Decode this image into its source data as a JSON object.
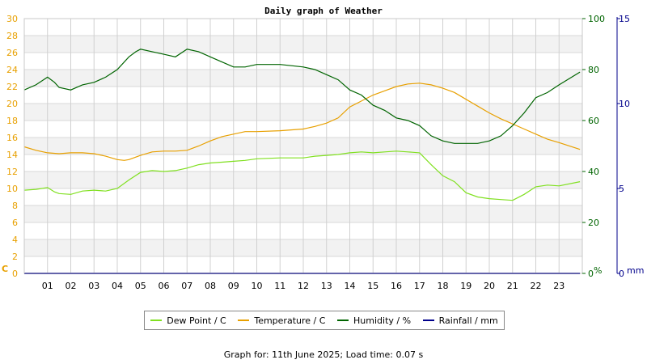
{
  "chart_data": {
    "type": "line",
    "title": "Daily graph of Weather",
    "x_ticks": [
      "01",
      "02",
      "03",
      "04",
      "05",
      "06",
      "07",
      "08",
      "09",
      "10",
      "11",
      "12",
      "13",
      "14",
      "15",
      "16",
      "17",
      "18",
      "19",
      "20",
      "21",
      "22",
      "23"
    ],
    "axes": {
      "left": {
        "unit": "C",
        "min": 0,
        "max": 30,
        "ticks": [
          0,
          2,
          4,
          6,
          8,
          10,
          12,
          14,
          16,
          18,
          20,
          22,
          24,
          26,
          28,
          30
        ],
        "color": "#e8a000"
      },
      "right1": {
        "unit": "%",
        "min": 0,
        "max": 100,
        "ticks": [
          0,
          20,
          40,
          60,
          80,
          100
        ],
        "color": "#006400"
      },
      "right2": {
        "unit": "mm",
        "min": 0,
        "max": 15,
        "ticks": [
          0,
          5,
          10,
          15
        ],
        "color": "#00008b"
      }
    },
    "series": [
      {
        "name": "Dew Point / C",
        "axis": "left",
        "color": "#80e020",
        "x": [
          0,
          0.5,
          1,
          1.3,
          1.5,
          2,
          2.5,
          3,
          3.5,
          4,
          4.5,
          5,
          5.5,
          6,
          6.5,
          7,
          7.5,
          8,
          8.5,
          9,
          9.5,
          10,
          11,
          12,
          12.5,
          13,
          13.5,
          14,
          14.5,
          15,
          15.5,
          16,
          16.5,
          17,
          17.5,
          18,
          18.5,
          19,
          19.5,
          20,
          20.5,
          21,
          21.5,
          22,
          22.5,
          23,
          23.9
        ],
        "values": [
          9.8,
          9.9,
          10.1,
          9.6,
          9.4,
          9.3,
          9.7,
          9.8,
          9.7,
          10,
          11,
          11.9,
          12.1,
          12,
          12.1,
          12.4,
          12.8,
          13,
          13.1,
          13.2,
          13.3,
          13.5,
          13.6,
          13.6,
          13.8,
          13.9,
          14,
          14.2,
          14.3,
          14.2,
          14.3,
          14.4,
          14.3,
          14.2,
          12.8,
          11.5,
          10.8,
          9.5,
          9.0,
          8.8,
          8.7,
          8.6,
          9.3,
          10.2,
          10.4,
          10.3,
          10.8
        ]
      },
      {
        "name": "Temperature / C",
        "axis": "left",
        "color": "#e8a000",
        "x": [
          0,
          0.5,
          1,
          1.5,
          2,
          2.5,
          3,
          3.5,
          4,
          4.3,
          4.5,
          5,
          5.5,
          6,
          6.5,
          7,
          7.5,
          8,
          8.5,
          9,
          9.5,
          10,
          11,
          12,
          12.5,
          13,
          13.5,
          14,
          14.5,
          15,
          15.5,
          16,
          16.5,
          17,
          17.5,
          18,
          18.5,
          19,
          19.5,
          20,
          20.5,
          21,
          21.5,
          22,
          22.5,
          23,
          23.9
        ],
        "values": [
          14.9,
          14.5,
          14.2,
          14.1,
          14.2,
          14.2,
          14.1,
          13.8,
          13.4,
          13.3,
          13.4,
          13.9,
          14.3,
          14.4,
          14.4,
          14.5,
          15.0,
          15.6,
          16.1,
          16.4,
          16.7,
          16.7,
          16.8,
          17.0,
          17.3,
          17.7,
          18.3,
          19.6,
          20.3,
          21.0,
          21.5,
          22.0,
          22.3,
          22.4,
          22.2,
          21.8,
          21.3,
          20.5,
          19.7,
          18.9,
          18.2,
          17.6,
          17.0,
          16.4,
          15.8,
          15.4,
          14.6
        ]
      },
      {
        "name": "Humidity / %",
        "axis": "right1",
        "color": "#006400",
        "x": [
          0,
          0.5,
          1,
          1.3,
          1.5,
          2,
          2.5,
          3,
          3.5,
          4,
          4.5,
          4.8,
          5,
          5.5,
          6,
          6.5,
          7,
          7.5,
          8,
          8.5,
          9,
          9.5,
          10,
          11,
          12,
          12.5,
          13,
          13.5,
          14,
          14.5,
          15,
          15.5,
          16,
          16.5,
          17,
          17.5,
          18,
          18.5,
          19,
          19.5,
          20,
          20.5,
          21,
          21.5,
          22,
          22.5,
          23,
          23.9
        ],
        "values": [
          72,
          74,
          77,
          75,
          73,
          72,
          74,
          75,
          77,
          80,
          85,
          87,
          88,
          87,
          86,
          85,
          88,
          87,
          85,
          83,
          81,
          81,
          82,
          82,
          81,
          80,
          78,
          76,
          72,
          70,
          66,
          64,
          61,
          60,
          58,
          54,
          52,
          51,
          51,
          51,
          52,
          54,
          58,
          63,
          69,
          71,
          74,
          79
        ]
      },
      {
        "name": "Rainfall / mm",
        "axis": "right2",
        "color": "#00008b",
        "x": [
          0,
          23.9
        ],
        "values": [
          0,
          0
        ]
      }
    ]
  },
  "footer": "Graph for: 11th June 2025; Load time: 0.07 s"
}
